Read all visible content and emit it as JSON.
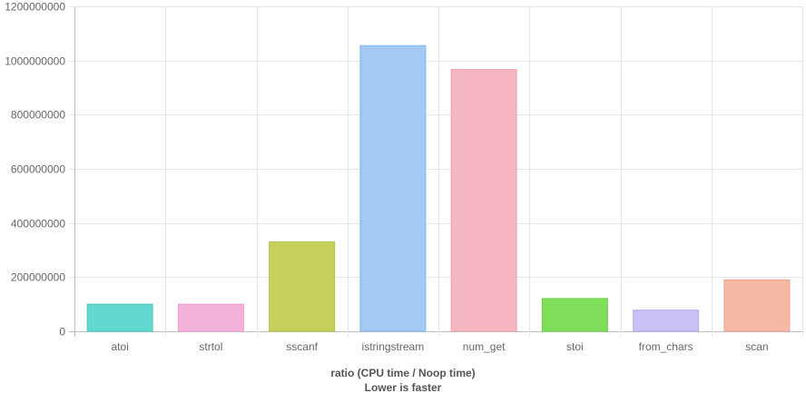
{
  "chart_data": {
    "type": "bar",
    "categories": [
      "atoi",
      "strtol",
      "sscanf",
      "istringstream",
      "num_get",
      "stoi",
      "from_chars",
      "scan"
    ],
    "values": [
      100000000,
      100000000,
      330000000,
      1055000000,
      967000000,
      121000000,
      78000000,
      190000000
    ],
    "colors": {
      "fills": [
        "#62d9cf",
        "#f5b3dc",
        "#c6d05c",
        "#a2caf3",
        "#f5b5c1",
        "#80df5a",
        "#c8c2f5",
        "#f5b9a6"
      ],
      "strokes": [
        "#4cc7bd",
        "#ee9fd0",
        "#b6c046",
        "#86b6e8",
        "#eea2b1",
        "#6ccc46",
        "#b3abee",
        "#eda48d"
      ],
      "grid": "#e6e6e6",
      "axis": "#bfbfbf"
    },
    "xlabel": "ratio (CPU time / Noop time)",
    "subtitle": "Lower is faster",
    "ylim": [
      0,
      1200000000
    ],
    "yticks": [
      0,
      200000000,
      400000000,
      600000000,
      800000000,
      1000000000,
      1200000000
    ],
    "grid": true,
    "legend": "none"
  }
}
